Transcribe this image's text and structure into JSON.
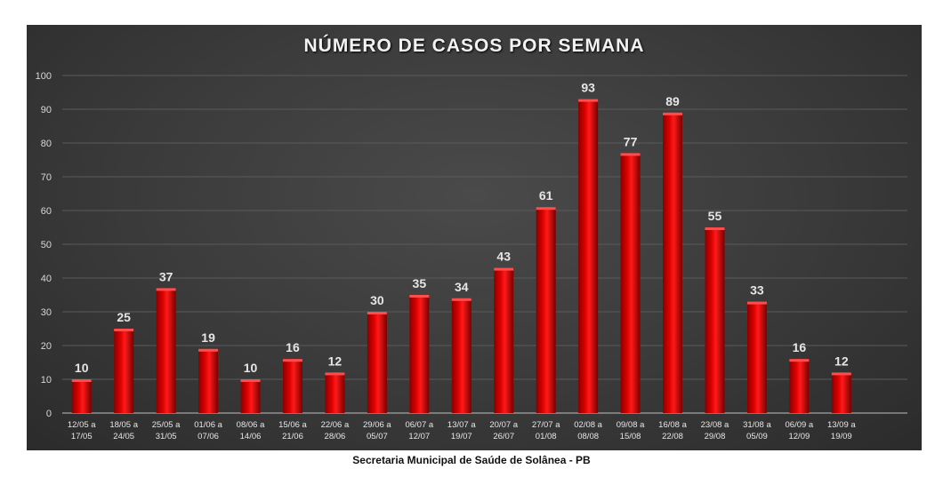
{
  "chart_data": {
    "type": "bar",
    "title": "NÚMERO DE CASOS POR SEMANA",
    "categories": [
      [
        "12/05 a",
        "17/05"
      ],
      [
        "18/05 a",
        "24/05"
      ],
      [
        "25/05 a",
        "31/05"
      ],
      [
        "01/06 a",
        "07/06"
      ],
      [
        "08/06 a",
        "14/06"
      ],
      [
        "15/06 a",
        "21/06"
      ],
      [
        "22/06 a",
        "28/06"
      ],
      [
        "29/06 a",
        "05/07"
      ],
      [
        "06/07 a",
        "12/07"
      ],
      [
        "13/07 a",
        "19/07"
      ],
      [
        "20/07 a",
        "26/07"
      ],
      [
        "27/07 a",
        "01/08"
      ],
      [
        "02/08 a",
        "08/08"
      ],
      [
        "09/08 a",
        "15/08"
      ],
      [
        "16/08 a",
        "22/08"
      ],
      [
        "23/08 a",
        "29/08"
      ],
      [
        "31/08 a",
        "05/09"
      ],
      [
        "06/09 a",
        "12/09"
      ],
      [
        "13/09 a",
        "19/09"
      ]
    ],
    "values": [
      10,
      25,
      37,
      19,
      10,
      16,
      12,
      30,
      35,
      34,
      43,
      61,
      93,
      77,
      89,
      55,
      33,
      16,
      12
    ],
    "ylim": [
      0,
      100
    ],
    "yticks": [
      0,
      10,
      20,
      30,
      40,
      50,
      60,
      70,
      80,
      90,
      100
    ],
    "grid": true,
    "bar_color": "#cc0000",
    "background_color": "#3c3c3c"
  },
  "caption": "Secretaria Municipal de Saúde de Solânea - PB"
}
